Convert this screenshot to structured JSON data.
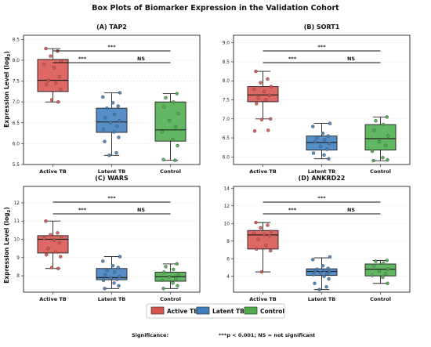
{
  "figure": {
    "title": "Box Plots of Biomarker Expression in the Validation Cohort",
    "ylabel_main": "Expression Level (log",
    "ylabel_sub": "2",
    "ylabel_close": ")"
  },
  "legend": {
    "entries": [
      {
        "label": "Active TB",
        "color": "#d9534f"
      },
      {
        "label": "Latent TB",
        "color": "#3f7fbf"
      },
      {
        "label": "Control",
        "color": "#4cae4c"
      }
    ]
  },
  "significance": {
    "label": "Significance:",
    "note": "***p < 0.001; NS = not significant"
  },
  "chart_data": [
    {
      "type": "box",
      "title": "(A) TAP2",
      "categories": [
        "Active TB",
        "Latent TB",
        "Control"
      ],
      "ylim": [
        5.5,
        8.6
      ],
      "yticks": [
        5.5,
        6.0,
        6.5,
        7.0,
        7.5,
        8.0,
        8.5
      ],
      "tick_decimals": 1,
      "boxes": [
        {
          "whislo": 7.0,
          "q1": 7.25,
          "med": 7.52,
          "q3": 8.02,
          "whishi": 8.28
        },
        {
          "whislo": 5.72,
          "q1": 6.27,
          "med": 6.52,
          "q3": 6.85,
          "whishi": 7.22
        },
        {
          "whislo": 5.6,
          "q1": 6.06,
          "med": 6.33,
          "q3": 7.0,
          "whishi": 7.2
        }
      ],
      "points": [
        [
          8.28,
          8.22,
          8.1,
          7.98,
          7.9,
          7.82,
          7.6,
          7.52,
          7.45,
          7.42,
          7.3,
          7.05,
          7.0
        ],
        [
          7.22,
          7.12,
          6.98,
          6.9,
          6.85,
          6.7,
          6.62,
          6.55,
          6.5,
          6.42,
          6.35,
          6.28,
          6.15,
          6.05,
          5.78,
          5.72
        ],
        [
          7.2,
          7.1,
          7.0,
          6.88,
          6.72,
          6.55,
          6.4,
          6.28,
          6.1,
          5.95,
          5.62,
          5.6
        ]
      ],
      "significance": [
        {
          "from": "Active TB",
          "to": "Control",
          "label": "***"
        },
        {
          "from": "Active TB",
          "to": "Latent TB",
          "label": "***"
        },
        {
          "from": "Latent TB",
          "to": "Control",
          "label": "NS"
        }
      ]
    },
    {
      "type": "box",
      "title": "(B) SORT1",
      "categories": [
        "Active TB",
        "Latent TB",
        "Control"
      ],
      "ylim": [
        5.8,
        9.2
      ],
      "yticks": [
        6.0,
        6.5,
        7.0,
        7.5,
        8.0,
        8.5,
        9.0
      ],
      "tick_decimals": 1,
      "boxes": [
        {
          "whislo": 7.0,
          "q1": 7.45,
          "med": 7.63,
          "q3": 7.85,
          "whishi": 8.25
        },
        {
          "whislo": 5.95,
          "q1": 6.18,
          "med": 6.38,
          "q3": 6.55,
          "whishi": 6.88
        },
        {
          "whislo": 5.9,
          "q1": 6.18,
          "med": 6.48,
          "q3": 6.85,
          "whishi": 7.05
        }
      ],
      "points": [
        [
          8.25,
          8.05,
          7.95,
          7.85,
          7.78,
          7.72,
          7.62,
          7.55,
          7.5,
          7.4,
          7.0,
          6.98,
          6.7,
          6.68
        ],
        [
          6.88,
          6.8,
          6.62,
          6.55,
          6.5,
          6.45,
          6.4,
          6.35,
          6.28,
          6.2,
          6.1,
          6.05,
          5.95
        ],
        [
          7.05,
          6.95,
          6.85,
          6.7,
          6.55,
          6.4,
          6.3,
          6.15,
          5.98,
          5.92,
          5.9
        ]
      ],
      "significance": [
        {
          "from": "Active TB",
          "to": "Control",
          "label": "***"
        },
        {
          "from": "Active TB",
          "to": "Latent TB",
          "label": "***"
        },
        {
          "from": "Latent TB",
          "to": "Control",
          "label": "NS"
        }
      ]
    },
    {
      "type": "box",
      "title": "(C) WARS",
      "categories": [
        "Active TB",
        "Latent TB",
        "Control"
      ],
      "ylim": [
        7.1,
        12.9
      ],
      "yticks": [
        8,
        9,
        10,
        11,
        12
      ],
      "tick_decimals": 0,
      "boxes": [
        {
          "whislo": 8.4,
          "q1": 9.25,
          "med": 10.0,
          "q3": 10.2,
          "whishi": 11.0
        },
        {
          "whislo": 7.3,
          "q1": 7.78,
          "med": 7.9,
          "q3": 8.4,
          "whishi": 9.05
        },
        {
          "whislo": 7.3,
          "q1": 7.7,
          "med": 7.95,
          "q3": 8.2,
          "whishi": 8.65
        }
      ],
      "points": [
        [
          11.0,
          10.35,
          10.25,
          10.15,
          10.05,
          9.95,
          9.8,
          9.5,
          9.3,
          9.15,
          9.05,
          8.45,
          8.4
        ],
        [
          9.05,
          8.8,
          8.55,
          8.45,
          8.3,
          8.2,
          8.05,
          7.95,
          7.88,
          7.8,
          7.75,
          7.6,
          7.45,
          7.3
        ],
        [
          8.65,
          8.5,
          8.35,
          8.2,
          8.05,
          7.95,
          7.85,
          7.75,
          7.6,
          7.45,
          7.3
        ]
      ],
      "significance": [
        {
          "from": "Active TB",
          "to": "Control",
          "label": "***"
        },
        {
          "from": "Active TB",
          "to": "Latent TB",
          "label": "***"
        },
        {
          "from": "Latent TB",
          "to": "Control",
          "label": "NS"
        }
      ]
    },
    {
      "type": "box",
      "title": "(D) ANKRD22",
      "categories": [
        "Active TB",
        "Latent TB",
        "Control"
      ],
      "ylim": [
        2.2,
        14.2
      ],
      "yticks": [
        4,
        6,
        8,
        10,
        12,
        14
      ],
      "tick_decimals": 0,
      "boxes": [
        {
          "whislo": 4.5,
          "q1": 7.1,
          "med": 8.7,
          "q3": 9.2,
          "whishi": 10.1
        },
        {
          "whislo": 2.5,
          "q1": 4.1,
          "med": 4.55,
          "q3": 4.85,
          "whishi": 6.1
        },
        {
          "whislo": 3.2,
          "q1": 4.05,
          "med": 4.8,
          "q3": 5.4,
          "whishi": 5.8
        }
      ],
      "points": [
        [
          10.1,
          9.8,
          9.5,
          9.1,
          8.9,
          8.75,
          8.6,
          8.2,
          7.5,
          7.1,
          6.9,
          4.5
        ],
        [
          6.2,
          5.9,
          5.2,
          4.9,
          4.8,
          4.7,
          4.6,
          4.5,
          4.4,
          4.3,
          4.2,
          4.0,
          3.7,
          3.2,
          2.8,
          2.5
        ],
        [
          5.8,
          5.7,
          5.5,
          5.2,
          4.8,
          4.6,
          4.3,
          4.1,
          3.9,
          3.2
        ]
      ],
      "significance": [
        {
          "from": "Active TB",
          "to": "Control",
          "label": "***"
        },
        {
          "from": "Active TB",
          "to": "Latent TB",
          "label": "***"
        },
        {
          "from": "Latent TB",
          "to": "Control",
          "label": "NS"
        }
      ]
    }
  ]
}
